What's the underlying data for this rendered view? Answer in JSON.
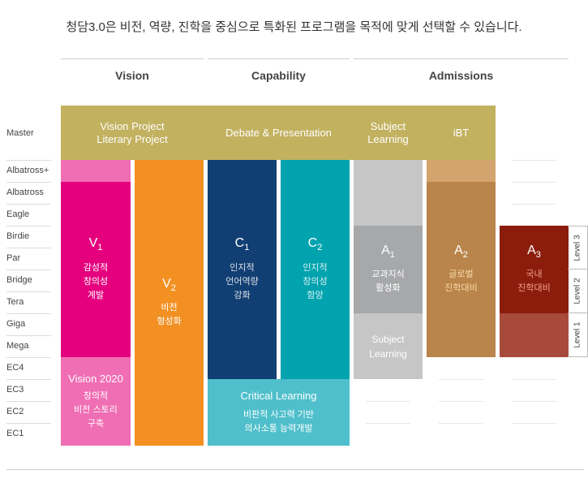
{
  "title": "청담3.0은 비전, 역량, 진학을 중심으로 특화된 프로그램을 목적에 맞게 선택할 수 있습니다.",
  "columns": [
    "Vision",
    "Capability",
    "Admissions"
  ],
  "levels": [
    "Master",
    "Albatross+",
    "Albatross",
    "Eagle",
    "Birdie",
    "Par",
    "Bridge",
    "Tera",
    "Giga",
    "Mega",
    "EC4",
    "EC3",
    "EC2",
    "EC1"
  ],
  "headers": {
    "vision": "Vision Project\nLiterary Project",
    "capability": "Debate & Presentation",
    "subject": "Subject\nLearning",
    "ibt": "iBT"
  },
  "blocks": {
    "v1": {
      "code": "V",
      "sub": "1",
      "desc": "감성적\n창의성\n계발"
    },
    "v2": {
      "code": "V",
      "sub": "2",
      "desc": "비전\n형성화"
    },
    "c1": {
      "code": "C",
      "sub": "1",
      "desc": "인지적\n언어역량\n강화"
    },
    "c2": {
      "code": "C",
      "sub": "2",
      "desc": "인지적\n창의성\n함양"
    },
    "a1": {
      "code": "A",
      "sub": "1",
      "desc": "교과지식\n활성화"
    },
    "a2": {
      "code": "A",
      "sub": "2",
      "desc": "글로벌\n진학대비"
    },
    "a3": {
      "code": "A",
      "sub": "3",
      "desc": "국내\n진학대비"
    },
    "vision2020": {
      "label": "Vision 2020",
      "desc": "창의적\n비전 스토리\n구축"
    },
    "critical": {
      "label": "Critical Learning",
      "desc": "비판적 사고력 기반\n의사소통 능력개발"
    },
    "subject_lower": {
      "label": "Subject\nLearning"
    }
  },
  "side_levels": [
    "Level 3",
    "Level 2",
    "Level 1"
  ],
  "colors": {
    "header_olive": "#c2b15f",
    "v1_magenta": "#e5007e",
    "v_pink": "#f06eb4",
    "v2_orange": "#f39022",
    "c1_navy": "#123f73",
    "c2_teal": "#00a3ae",
    "critical_teal": "#4fbfcb",
    "a1_gray": "#a7a8aa",
    "a_light_gray": "#c6c6c7",
    "a2_brown": "#b9854a",
    "a2_tan": "#d4a46e",
    "a3_red": "#8c1d0d",
    "a3_red_light": "#a84a3b"
  }
}
